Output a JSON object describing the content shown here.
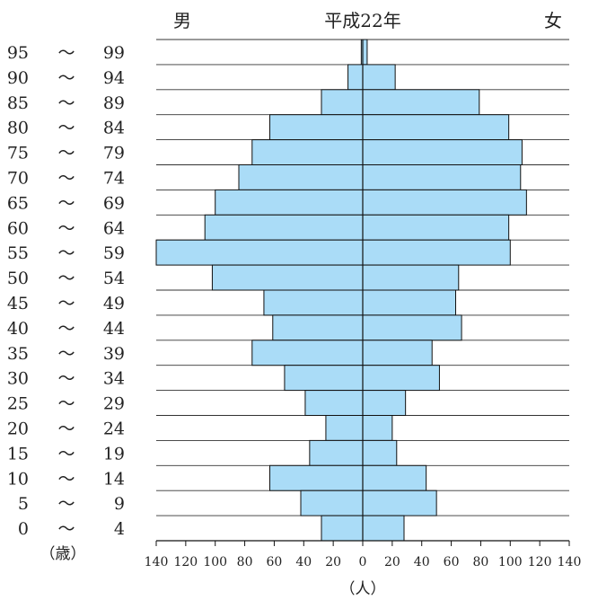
{
  "chart_data": {
    "type": "bar",
    "title": "平成22年",
    "left_label": "男",
    "right_label": "女",
    "xlabel": "（人）",
    "ylabel": "（歳）",
    "xlim": [
      -140,
      140
    ],
    "x_ticks": [
      "140",
      "120",
      "100",
      "80",
      "60",
      "40",
      "20",
      "0",
      "20",
      "40",
      "60",
      "80",
      "100",
      "120",
      "140"
    ],
    "categories": [
      {
        "from": "95",
        "to": "99"
      },
      {
        "from": "90",
        "to": "94"
      },
      {
        "from": "85",
        "to": "89"
      },
      {
        "from": "80",
        "to": "84"
      },
      {
        "from": "75",
        "to": "79"
      },
      {
        "from": "70",
        "to": "74"
      },
      {
        "from": "65",
        "to": "69"
      },
      {
        "from": "60",
        "to": "64"
      },
      {
        "from": "55",
        "to": "59"
      },
      {
        "from": "50",
        "to": "54"
      },
      {
        "from": "45",
        "to": "49"
      },
      {
        "from": "40",
        "to": "44"
      },
      {
        "from": "35",
        "to": "39"
      },
      {
        "from": "30",
        "to": "34"
      },
      {
        "from": "25",
        "to": "29"
      },
      {
        "from": "20",
        "to": "24"
      },
      {
        "from": "15",
        "to": "19"
      },
      {
        "from": "10",
        "to": "14"
      },
      {
        "from": "5",
        "to": "9"
      },
      {
        "from": "0",
        "to": "4"
      }
    ],
    "range_sep": "～",
    "series": [
      {
        "name": "男",
        "values": [
          1,
          10,
          28,
          63,
          75,
          84,
          100,
          107,
          140,
          102,
          67,
          61,
          75,
          53,
          39,
          25,
          36,
          63,
          42,
          28
        ]
      },
      {
        "name": "女",
        "values": [
          3,
          22,
          79,
          99,
          108,
          107,
          111,
          99,
          100,
          65,
          63,
          67,
          47,
          52,
          29,
          20,
          23,
          43,
          50,
          28
        ]
      }
    ],
    "colors": {
      "bar_fill": "#aadcf7",
      "bar_stroke": "#111111"
    },
    "grid": "horizontal"
  }
}
